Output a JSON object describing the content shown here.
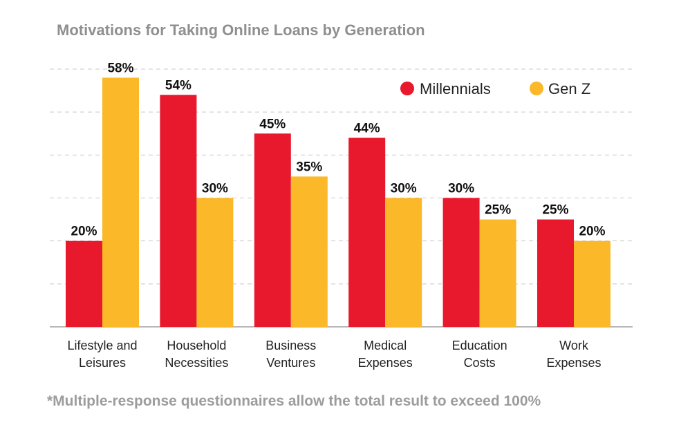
{
  "chart_data": {
    "type": "bar",
    "title": "Motivations for Taking Online Loans by Generation",
    "categories": [
      [
        "Lifestyle and",
        "Leisures"
      ],
      [
        "Household",
        "Necessities"
      ],
      [
        "Business",
        "Ventures"
      ],
      [
        "Medical",
        "Expenses"
      ],
      [
        "Education",
        "Costs"
      ],
      [
        "Work",
        "Expenses"
      ]
    ],
    "series": [
      {
        "name": "Millennials",
        "color": "#e8192c",
        "values": [
          20,
          54,
          45,
          44,
          30,
          25
        ],
        "labels": [
          "20%",
          "54%",
          "45%",
          "44%",
          "30%",
          "25%"
        ]
      },
      {
        "name": "Gen Z",
        "color": "#fbb829",
        "values": [
          58,
          30,
          35,
          30,
          25,
          20
        ],
        "labels": [
          "58%",
          "30%",
          "35%",
          "30%",
          "25%",
          "20%"
        ]
      }
    ],
    "ylim": [
      0,
      60
    ],
    "grid": true,
    "legend_position": "top-right",
    "xlabel": "",
    "ylabel": ""
  },
  "footnote": "*Multiple-response questionnaires allow the total result to exceed 100%"
}
